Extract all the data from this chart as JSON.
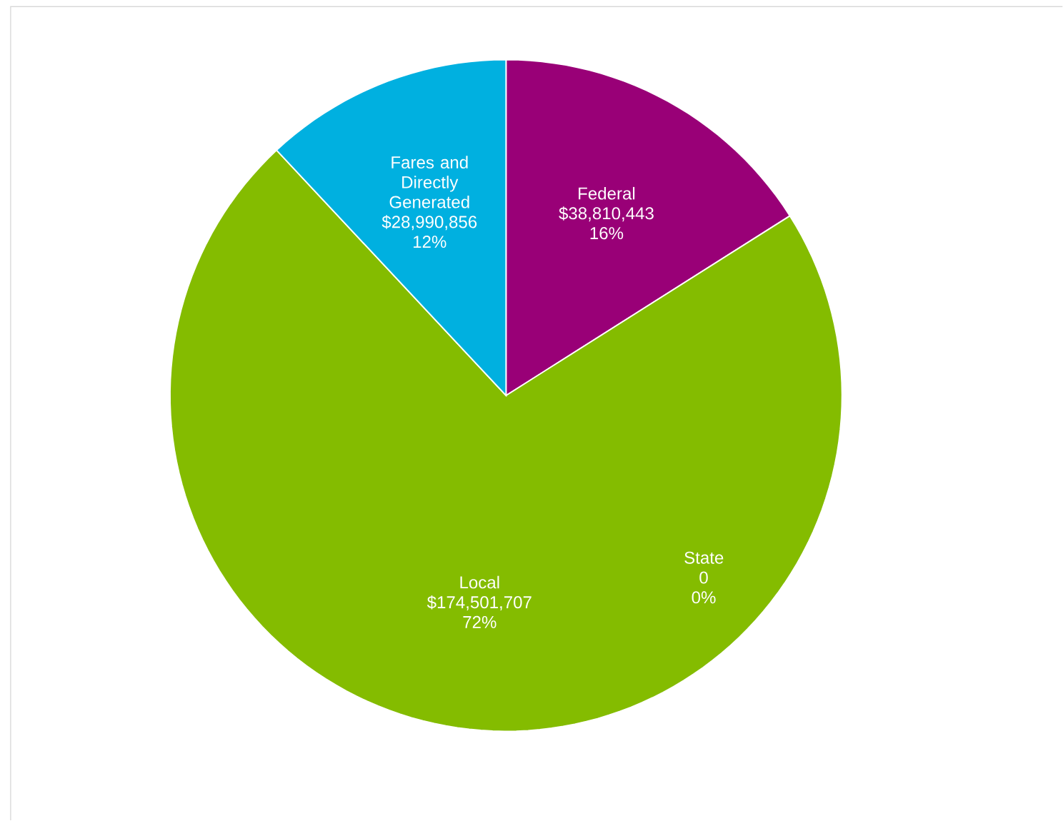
{
  "chart_data": {
    "type": "pie",
    "categories": [
      "Federal",
      "State",
      "Local",
      "Fares and Directly Generated"
    ],
    "values": [
      38810443,
      0,
      174501707,
      28990856
    ],
    "colors": [
      "#990077",
      "#4f81bd",
      "#84bc00",
      "#00b0e0"
    ],
    "value_labels": [
      "$38,810,443 16%",
      "0 0%",
      "$174,501,707 72%",
      "$28,990,856 12%"
    ]
  }
}
